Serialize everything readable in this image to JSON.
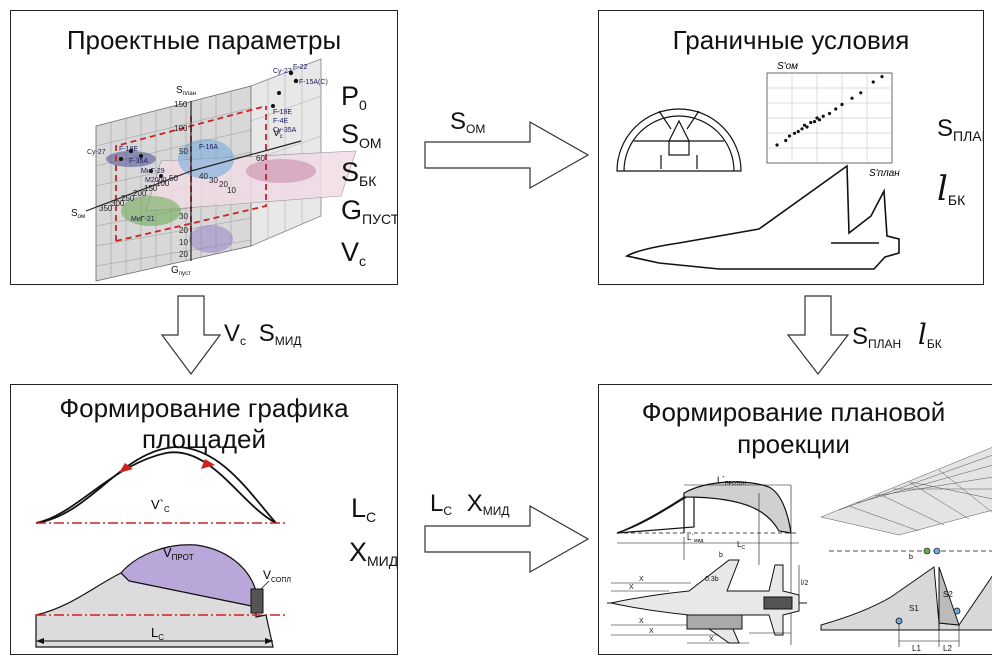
{
  "colors": {
    "border": "#222222",
    "arrow_fill": "#ffffff",
    "red_dash": "#cc2222",
    "purple": "#b8a7d8",
    "gray": "#dcdcdc",
    "green": "#6aa84f",
    "blue": "#6fa8dc",
    "pink": "#c27ba0"
  },
  "panels": {
    "design": {
      "title": "Проектные параметры",
      "params": [
        {
          "main": "P",
          "sub": "0"
        },
        {
          "main": "S",
          "sub": "ОМ"
        },
        {
          "main": "S",
          "sub": "БК"
        },
        {
          "main": "G",
          "sub": "ПУСТ"
        },
        {
          "main": "V",
          "sub": "c"
        }
      ],
      "axis_labels": {
        "s_plan": "S",
        "s_plan_sub": "план",
        "s_om": "S",
        "s_om_sub": "ом",
        "v_c": "V",
        "v_c_sub": "c",
        "g_pust": "G",
        "g_pust_sub": "пуст"
      },
      "aircraft_tags": [
        "Cy-27",
        "F-22",
        "F-15A(C)",
        "F-18E",
        "F-4E",
        "Cy-35A",
        "Cy-27",
        "F-18E",
        "F-35A",
        "MиГ-29",
        "M2000",
        "F-16A",
        "MиГ-21"
      ],
      "tick_labels": [
        "150",
        "100",
        "50",
        "350",
        "300",
        "250",
        "200",
        "150",
        "100",
        "50",
        "40",
        "30",
        "20",
        "10",
        "60",
        "30",
        "20",
        "10",
        "20"
      ]
    },
    "boundary": {
      "title": "Граничные условия",
      "params": [
        {
          "main": "S",
          "sub": "ПЛАН"
        },
        {
          "main": "l",
          "sub": "БК"
        }
      ],
      "scatter_xlabel": "S'план",
      "scatter_ylabel": "S'ом"
    },
    "area_graph": {
      "title_line1": "Формирование графика",
      "title_line2": "площадей",
      "params": [
        {
          "main": "L",
          "sub": "С"
        },
        {
          "main": "X",
          "sub": "МИД"
        }
      ],
      "curve_labels": {
        "vc": "V`",
        "vc_sub": "С",
        "vprot": "V",
        "vprot_sub": "ПРОТ",
        "vsopl": "V",
        "vsopl_sub": "СОПЛ",
        "lc": "L",
        "lc_sub": "С"
      }
    },
    "plan_projection": {
      "title_line1": "Формирование плановой",
      "title_line2": "проекции",
      "dims": {
        "l_prot": "L`",
        "l_prot_sub": "ПРОТОН",
        "lc": "L",
        "lc_sub": "C",
        "l_mid": "L`",
        "l_mid_sub": "мид",
        "s1": "S1",
        "s2": "S2",
        "L1": "L1",
        "L2": "L2",
        "b": "b",
        "x": "X",
        "l2": "l/2",
        "zero_three_b": "0.3b"
      }
    }
  },
  "arrows": {
    "top": {
      "main": "S",
      "sub": "ОМ"
    },
    "left": [
      {
        "main": "V",
        "sub": "c"
      },
      {
        "main": "S",
        "sub": "МИД"
      }
    ],
    "right": [
      {
        "main": "S",
        "sub": "ПЛАН"
      },
      {
        "main": "l",
        "sub": "БК"
      }
    ],
    "bottom": [
      {
        "main": "L",
        "sub": "С"
      },
      {
        "main": "X",
        "sub": "МИД"
      }
    ]
  },
  "scatter_points": [
    [
      0.08,
      0.2
    ],
    [
      0.15,
      0.25
    ],
    [
      0.18,
      0.3
    ],
    [
      0.22,
      0.33
    ],
    [
      0.25,
      0.35
    ],
    [
      0.28,
      0.38
    ],
    [
      0.3,
      0.42
    ],
    [
      0.32,
      0.4
    ],
    [
      0.35,
      0.45
    ],
    [
      0.38,
      0.46
    ],
    [
      0.4,
      0.5
    ],
    [
      0.42,
      0.48
    ],
    [
      0.45,
      0.52
    ],
    [
      0.5,
      0.55
    ],
    [
      0.55,
      0.6
    ],
    [
      0.6,
      0.65
    ],
    [
      0.68,
      0.72
    ],
    [
      0.75,
      0.78
    ],
    [
      0.85,
      0.9
    ],
    [
      0.92,
      0.96
    ]
  ]
}
